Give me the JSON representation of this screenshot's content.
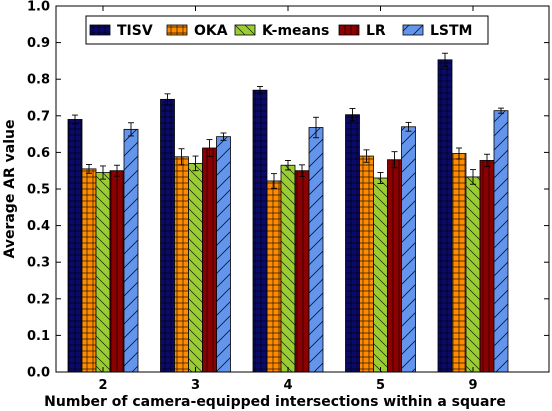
{
  "chart_data": {
    "type": "bar",
    "title": "",
    "xlabel": "Number of camera-equipped intersections within a square",
    "ylabel": "Average AR value",
    "categories": [
      "2",
      "3",
      "4",
      "5",
      "9"
    ],
    "ylim": [
      0,
      1.0
    ],
    "yticks": [
      "0.0",
      "0.1",
      "0.2",
      "0.3",
      "0.4",
      "0.5",
      "0.6",
      "0.7",
      "0.8",
      "0.9",
      "1.0"
    ],
    "grid": false,
    "legend_position": "top",
    "series": [
      {
        "name": "TISV",
        "color": "#0a0a6b",
        "hatch": "grid",
        "values": [
          0.69,
          0.745,
          0.77,
          0.703,
          0.853
        ],
        "errors": [
          0.012,
          0.015,
          0.01,
          0.017,
          0.018
        ]
      },
      {
        "name": "OKA",
        "color": "#ff8c00",
        "hatch": "grid",
        "values": [
          0.555,
          0.588,
          0.522,
          0.59,
          0.597
        ],
        "errors": [
          0.012,
          0.022,
          0.02,
          0.017,
          0.015
        ]
      },
      {
        "name": "K-means",
        "color": "#9acd32",
        "hatch": "backslash",
        "values": [
          0.545,
          0.57,
          0.565,
          0.53,
          0.533
        ],
        "errors": [
          0.018,
          0.02,
          0.013,
          0.015,
          0.02
        ]
      },
      {
        "name": "LR",
        "color": "#8b0000",
        "hatch": "vertical",
        "values": [
          0.55,
          0.612,
          0.55,
          0.58,
          0.578
        ],
        "errors": [
          0.015,
          0.023,
          0.016,
          0.022,
          0.017
        ]
      },
      {
        "name": "LSTM",
        "color": "#6495ed",
        "hatch": "slash",
        "values": [
          0.663,
          0.643,
          0.668,
          0.67,
          0.714
        ],
        "errors": [
          0.018,
          0.01,
          0.028,
          0.012,
          0.007
        ]
      }
    ]
  }
}
